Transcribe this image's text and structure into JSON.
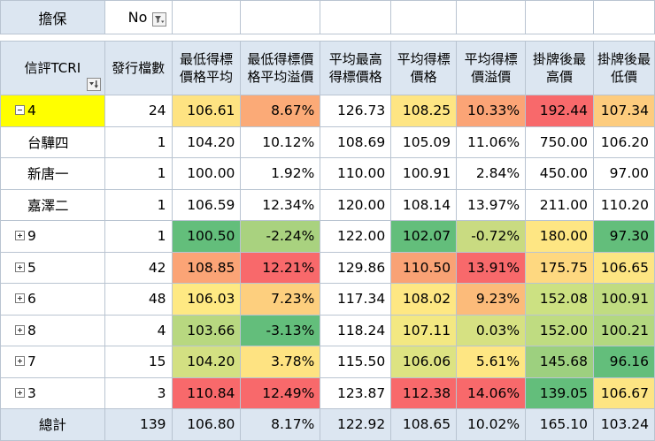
{
  "filter": {
    "label": "擔保",
    "value": "No"
  },
  "headers": [
    "信評TCRI",
    "發行檔數",
    "最低得標價格平均",
    "最低得標價格平均溢價",
    "平均最高得標價格",
    "平均得標價格",
    "平均得標價溢價",
    "掛牌後最高價",
    "掛牌後最低價"
  ],
  "header_lines": [
    [
      "信評TCRI"
    ],
    [
      "發行檔數"
    ],
    [
      "最低得標",
      "價格平均"
    ],
    [
      "最低得標價",
      "格平均溢價"
    ],
    [
      "平均最高",
      "得標價格"
    ],
    [
      "平均得標",
      "價格"
    ],
    [
      "平均得標",
      "價溢價"
    ],
    [
      "掛牌後最",
      "高價"
    ],
    [
      "掛牌後最",
      "低價"
    ]
  ],
  "rows": [
    {
      "label": "4",
      "expander": "minus",
      "selected": true,
      "cells": [
        "24",
        "106.61",
        "8.67%",
        "126.73",
        "108.25",
        "10.33%",
        "192.44",
        "107.34"
      ],
      "colors": [
        null,
        "#fee382",
        "#fbaa77",
        null,
        "#fee583",
        "#fba476",
        "#f8696b",
        "#fdcc7e"
      ]
    },
    {
      "label": "台驊四",
      "child": true,
      "cells": [
        "1",
        "104.20",
        "10.12%",
        "108.69",
        "105.09",
        "11.06%",
        "750.00",
        "106.20"
      ],
      "colors": [
        null,
        null,
        null,
        null,
        null,
        null,
        null,
        null
      ]
    },
    {
      "label": "新唐一",
      "child": true,
      "cells": [
        "1",
        "100.00",
        "1.92%",
        "110.00",
        "100.91",
        "2.84%",
        "450.00",
        "97.00"
      ],
      "colors": [
        null,
        null,
        null,
        null,
        null,
        null,
        null,
        null
      ]
    },
    {
      "label": "嘉澤二",
      "child": true,
      "cells": [
        "1",
        "106.59",
        "12.34%",
        "120.00",
        "108.14",
        "13.97%",
        "211.00",
        "110.20"
      ],
      "colors": [
        null,
        null,
        null,
        null,
        null,
        null,
        null,
        null
      ]
    },
    {
      "label": "9",
      "expander": "plus",
      "cells": [
        "1",
        "100.50",
        "-2.24%",
        "122.00",
        "102.07",
        "-0.72%",
        "180.00",
        "97.30"
      ],
      "colors": [
        null,
        "#63be7b",
        "#a9d27f",
        null,
        "#63be7b",
        "#c9db81",
        "#fee683",
        "#63be7b"
      ]
    },
    {
      "label": "5",
      "expander": "plus",
      "cells": [
        "42",
        "108.85",
        "12.21%",
        "129.86",
        "110.50",
        "13.91%",
        "175.75",
        "106.65"
      ],
      "colors": [
        null,
        "#fba476",
        "#f8696b",
        null,
        "#f9a275",
        "#f8696b",
        "#fed880",
        "#fde583"
      ]
    },
    {
      "label": "6",
      "expander": "plus",
      "cells": [
        "48",
        "106.03",
        "7.23%",
        "117.34",
        "108.02",
        "9.23%",
        "152.08",
        "100.91"
      ],
      "colors": [
        null,
        "#fee983",
        "#fdcf7e",
        null,
        "#fee783",
        "#fcbb7a",
        "#cce182",
        "#c0dc81"
      ]
    },
    {
      "label": "8",
      "expander": "plus",
      "cells": [
        "4",
        "103.66",
        "-3.13%",
        "118.24",
        "107.11",
        "0.03%",
        "152.00",
        "100.21"
      ],
      "colors": [
        null,
        "#b8d880",
        "#63be7b",
        null,
        "#f3e882",
        "#d6e182",
        "#bfdc81",
        "#b3d880"
      ]
    },
    {
      "label": "7",
      "expander": "plus",
      "cells": [
        "15",
        "104.20",
        "3.78%",
        "115.50",
        "106.06",
        "5.61%",
        "145.68",
        "96.16"
      ],
      "colors": [
        null,
        "#d3e082",
        "#fee382",
        null,
        "#dde382",
        "#fee683",
        "#9dd07f",
        "#63be7b"
      ]
    },
    {
      "label": "3",
      "expander": "plus",
      "cells": [
        "3",
        "110.84",
        "12.49%",
        "123.87",
        "112.38",
        "14.06%",
        "139.05",
        "106.67"
      ],
      "colors": [
        null,
        "#f8696b",
        "#f8696b",
        null,
        "#f8696b",
        "#f8696b",
        "#63be7b",
        "#fde583"
      ]
    }
  ],
  "total": {
    "label": "總計",
    "cells": [
      "139",
      "106.80",
      "8.17%",
      "122.92",
      "108.65",
      "10.02%",
      "165.10",
      "103.24"
    ]
  },
  "icons": {
    "filter": "funnel-filter-icon",
    "sort": "sort-dropdown-icon"
  }
}
